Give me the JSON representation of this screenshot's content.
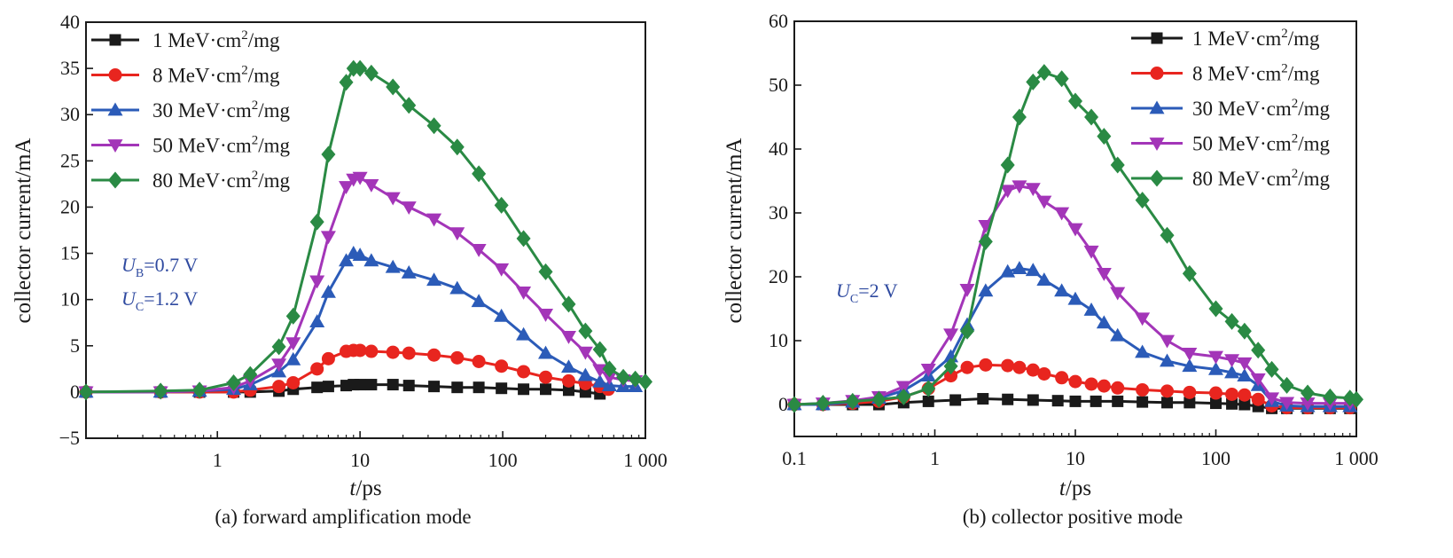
{
  "chart_data": [
    {
      "type": "line",
      "caption": "(a) forward amplification mode",
      "xlabel": {
        "italic": "t",
        "rest": "/ps"
      },
      "ylabel": "collector current/mA",
      "xscale": "log",
      "xlim": [
        0.12,
        1000
      ],
      "ylim": [
        -5,
        40
      ],
      "xticks": [
        1,
        10,
        100,
        1000
      ],
      "xtick_labels": [
        "1",
        "10",
        "100",
        "1 000"
      ],
      "yticks": [
        -5,
        0,
        5,
        10,
        15,
        20,
        25,
        30,
        35,
        40
      ],
      "ytick_labels": [
        "−5",
        "0",
        "5",
        "10",
        "15",
        "20",
        "25",
        "30",
        "35",
        "40"
      ],
      "grid": false,
      "legend_position": "top-left",
      "annotation": {
        "lines": [
          {
            "main": "U",
            "sub": "B",
            "rest": "=0.7 V"
          },
          {
            "main": "U",
            "sub": "C",
            "rest": "=1.2 V"
          }
        ],
        "color": "#2f4aa0"
      },
      "series": [
        {
          "name": "1 MeV·cm²/mg",
          "label_main": "1 MeV·cm",
          "label_sup": "2",
          "label_rest": "/mg",
          "color": "#1a1a1a",
          "marker": "square",
          "x": [
            0.12,
            0.4,
            0.75,
            1.3,
            1.7,
            2.7,
            3.4,
            5,
            6,
            8,
            9,
            10,
            12,
            17,
            22,
            33,
            48,
            68,
            98,
            140,
            200,
            290,
            380,
            480
          ],
          "y": [
            0,
            0,
            0,
            0,
            0,
            0.1,
            0.3,
            0.5,
            0.6,
            0.7,
            0.8,
            0.8,
            0.8,
            0.8,
            0.7,
            0.6,
            0.5,
            0.5,
            0.4,
            0.3,
            0.3,
            0.2,
            0,
            -0.2
          ]
        },
        {
          "name": "8 MeV·cm²/mg",
          "label_main": "8 MeV·cm",
          "label_sup": "2",
          "label_rest": "/mg",
          "color": "#e8251f",
          "marker": "circle",
          "x": [
            0.12,
            0.4,
            0.75,
            1.3,
            1.7,
            2.7,
            3.4,
            5,
            6,
            8,
            9,
            10,
            12,
            17,
            22,
            33,
            48,
            68,
            98,
            140,
            200,
            290,
            380,
            480,
            550
          ],
          "y": [
            0,
            0,
            0,
            0,
            0.2,
            0.6,
            1.0,
            2.5,
            3.6,
            4.4,
            4.5,
            4.5,
            4.4,
            4.3,
            4.2,
            4.0,
            3.7,
            3.3,
            2.8,
            2.2,
            1.6,
            1.2,
            0.9,
            0.6,
            0.3
          ]
        },
        {
          "name": "30 MeV·cm²/mg",
          "label_main": "30 MeV·cm",
          "label_sup": "2",
          "label_rest": "/mg",
          "color": "#2b5bb8",
          "marker": "triangle-up",
          "x": [
            0.12,
            0.4,
            0.75,
            1.3,
            1.7,
            2.7,
            3.4,
            5,
            6,
            8,
            9,
            10,
            12,
            17,
            22,
            33,
            48,
            68,
            98,
            140,
            200,
            290,
            380,
            480,
            560,
            700,
            850
          ],
          "y": [
            0,
            0,
            0.1,
            0.3,
            0.8,
            2.2,
            3.5,
            7.6,
            10.8,
            14.2,
            15.0,
            14.8,
            14.2,
            13.5,
            12.9,
            12.1,
            11.2,
            9.8,
            8.2,
            6.2,
            4.2,
            2.7,
            1.8,
            1.1,
            0.7,
            0.6,
            0.6
          ]
        },
        {
          "name": "50 MeV·cm²/mg",
          "label_main": "50 MeV·cm",
          "label_sup": "2",
          "label_rest": "/mg",
          "color": "#a335b8",
          "marker": "triangle-down",
          "x": [
            0.12,
            0.4,
            0.75,
            1.3,
            1.7,
            2.7,
            3.4,
            5,
            6,
            8,
            9,
            10,
            12,
            17,
            22,
            33,
            48,
            68,
            98,
            140,
            200,
            290,
            380,
            480,
            560,
            700,
            850
          ],
          "y": [
            0,
            0,
            0.1,
            0.5,
            1.2,
            3.0,
            5.3,
            12.0,
            16.8,
            22.2,
            23.0,
            23.2,
            22.4,
            21.0,
            20.0,
            18.7,
            17.2,
            15.4,
            13.3,
            10.8,
            8.4,
            6.0,
            4.3,
            2.4,
            1.6,
            1.3,
            1.2
          ]
        },
        {
          "name": "80 MeV·cm²/mg",
          "label_main": "80 MeV·cm",
          "label_sup": "2",
          "label_rest": "/mg",
          "color": "#2a8a44",
          "marker": "diamond",
          "x": [
            0.12,
            0.4,
            0.75,
            1.3,
            1.7,
            2.7,
            3.4,
            5,
            6,
            8,
            9,
            10,
            12,
            17,
            22,
            33,
            48,
            68,
            98,
            140,
            200,
            290,
            380,
            480,
            560,
            700,
            850,
            1000
          ],
          "y": [
            0,
            0.1,
            0.2,
            1.0,
            1.9,
            4.9,
            8.2,
            18.4,
            25.7,
            33.5,
            35.0,
            35.0,
            34.5,
            33.0,
            31.0,
            28.8,
            26.5,
            23.6,
            20.2,
            16.6,
            13.0,
            9.5,
            6.6,
            4.6,
            2.5,
            1.6,
            1.4,
            1.1
          ]
        }
      ]
    },
    {
      "type": "line",
      "caption": "(b) collector positive mode",
      "xlabel": {
        "italic": "t",
        "rest": "/ps"
      },
      "ylabel": "collector current/mA",
      "xscale": "log",
      "xlim": [
        0.1,
        1000
      ],
      "ylim": [
        -5,
        60
      ],
      "xticks": [
        0.1,
        1,
        10,
        100,
        1000
      ],
      "xtick_labels": [
        "0.1",
        "1",
        "10",
        "100",
        "1 000"
      ],
      "yticks": [
        0,
        10,
        20,
        30,
        40,
        50,
        60
      ],
      "ytick_labels": [
        "0",
        "10",
        "20",
        "30",
        "40",
        "50",
        "60"
      ],
      "grid": false,
      "legend_position": "top-right",
      "annotation": {
        "lines": [
          {
            "main": "U",
            "sub": "C",
            "rest": "=2 V"
          }
        ],
        "color": "#2f4aa0"
      },
      "series": [
        {
          "name": "1 MeV·cm²/mg",
          "label_main": "1 MeV·cm",
          "label_sup": "2",
          "label_rest": "/mg",
          "color": "#1a1a1a",
          "marker": "square",
          "x": [
            0.1,
            0.16,
            0.26,
            0.4,
            0.6,
            0.9,
            1.4,
            2.2,
            3.3,
            5,
            7.5,
            10,
            14,
            20,
            30,
            45,
            65,
            100,
            130,
            160,
            200,
            250,
            320,
            450,
            650,
            900
          ],
          "y": [
            0,
            0,
            0,
            0,
            0.3,
            0.5,
            0.7,
            0.9,
            0.8,
            0.7,
            0.6,
            0.5,
            0.5,
            0.5,
            0.4,
            0.3,
            0.3,
            0.2,
            0.1,
            0,
            -0.3,
            -0.6,
            -0.6,
            -0.6,
            -0.6,
            -0.6
          ]
        },
        {
          "name": "8 MeV·cm²/mg",
          "label_main": "8 MeV·cm",
          "label_sup": "2",
          "label_rest": "/mg",
          "color": "#e8251f",
          "marker": "circle",
          "x": [
            0.1,
            0.16,
            0.26,
            0.4,
            0.6,
            0.9,
            1.3,
            1.7,
            2.3,
            3.3,
            4,
            5,
            6,
            8,
            10,
            13,
            16,
            20,
            30,
            45,
            65,
            100,
            130,
            160,
            200,
            250,
            320,
            450,
            650,
            900
          ],
          "y": [
            0,
            0,
            0.2,
            0.5,
            1.2,
            2.5,
            4.5,
            5.8,
            6.2,
            6.1,
            5.8,
            5.4,
            4.8,
            4.2,
            3.6,
            3.2,
            2.9,
            2.6,
            2.3,
            2.1,
            1.9,
            1.8,
            1.6,
            1.5,
            0.8,
            -0.2,
            -0.5,
            -0.5,
            -0.5,
            -0.5
          ]
        },
        {
          "name": "30 MeV·cm²/mg",
          "label_main": "30 MeV·cm",
          "label_sup": "2",
          "label_rest": "/mg",
          "color": "#2b5bb8",
          "marker": "triangle-up",
          "x": [
            0.1,
            0.16,
            0.26,
            0.4,
            0.6,
            0.9,
            1.3,
            1.7,
            2.3,
            3.3,
            4,
            5,
            6,
            8,
            10,
            13,
            16,
            20,
            30,
            45,
            65,
            100,
            130,
            160,
            200,
            250,
            320,
            450,
            650,
            900
          ],
          "y": [
            0,
            0,
            0.4,
            1.0,
            2.2,
            4.5,
            7.5,
            12.5,
            17.8,
            20.8,
            21.3,
            21.0,
            19.5,
            17.8,
            16.5,
            14.8,
            12.8,
            10.8,
            8.2,
            6.8,
            6.0,
            5.5,
            5.0,
            4.5,
            3.0,
            0.5,
            -0.2,
            -0.3,
            -0.3,
            -0.3
          ]
        },
        {
          "name": "50 MeV·cm²/mg",
          "label_main": "50 MeV·cm",
          "label_sup": "2",
          "label_rest": "/mg",
          "color": "#a335b8",
          "marker": "triangle-down",
          "x": [
            0.1,
            0.16,
            0.26,
            0.4,
            0.6,
            0.9,
            1.3,
            1.7,
            2.3,
            3.3,
            4,
            5,
            6,
            8,
            10,
            13,
            16,
            20,
            30,
            45,
            65,
            100,
            130,
            160,
            200,
            250,
            320,
            450,
            650,
            900
          ],
          "y": [
            0,
            0.2,
            0.6,
            1.2,
            2.8,
            5.5,
            11,
            18,
            28,
            33.5,
            34.2,
            33.8,
            31.8,
            30.0,
            27.5,
            24.0,
            20.5,
            17.5,
            13.5,
            10.0,
            8.0,
            7.5,
            7.0,
            6.5,
            4.0,
            1.0,
            0.3,
            0.2,
            0.2,
            0.2
          ]
        },
        {
          "name": "80 MeV·cm²/mg",
          "label_main": "80 MeV·cm",
          "label_sup": "2",
          "label_rest": "/mg",
          "color": "#2a8a44",
          "marker": "diamond",
          "x": [
            0.1,
            0.16,
            0.26,
            0.4,
            0.6,
            0.9,
            1.3,
            1.7,
            2.3,
            3.3,
            4,
            5,
            6,
            8,
            10,
            13,
            16,
            20,
            30,
            45,
            65,
            100,
            130,
            160,
            200,
            250,
            320,
            450,
            650,
            900,
            1000
          ],
          "y": [
            0,
            0.2,
            0.5,
            0.8,
            1.2,
            2.5,
            6,
            11.5,
            25.5,
            37.5,
            45,
            50.5,
            52,
            51,
            47.5,
            45,
            42,
            37.5,
            32,
            26.5,
            20.5,
            15,
            13,
            11.5,
            8.5,
            5.5,
            3.0,
            1.8,
            1.2,
            1.0,
            0.8
          ]
        }
      ]
    }
  ]
}
